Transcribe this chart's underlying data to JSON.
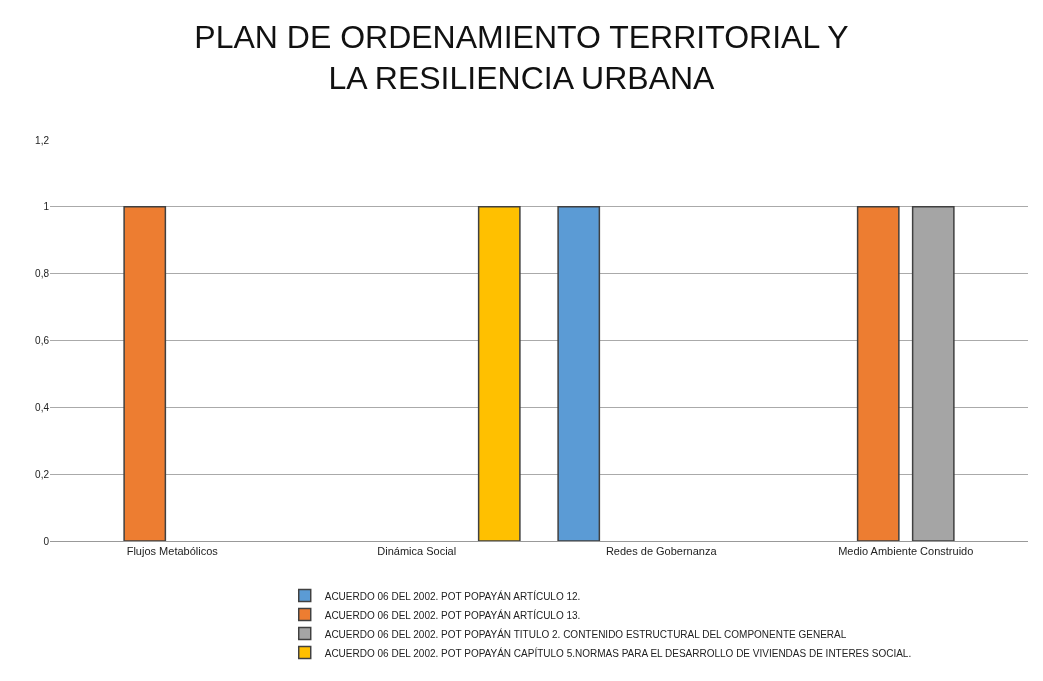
{
  "chart_data": {
    "type": "bar",
    "title": "PLAN DE ORDENAMIENTO TERRITORIAL Y\nLA RESILIENCIA URBANA",
    "categories": [
      "Flujos Metabólicos",
      "Dinámica Social",
      "Redes de Gobernanza",
      "Medio Ambiente Construido"
    ],
    "series": [
      {
        "name": "ACUERDO 06 DEL 2002. POT POPAYÁN ARTÍCULO 12.",
        "color": "#5b9bd5",
        "values": [
          null,
          null,
          1,
          null
        ]
      },
      {
        "name": "ACUERDO 06 DEL 2002. POT POPAYÁN ARTÍCULO 13.",
        "color": "#ed7d31",
        "values": [
          1,
          null,
          null,
          1
        ]
      },
      {
        "name": "ACUERDO 06 DEL 2002. POT POPAYÁN TITULO 2. CONTENIDO ESTRUCTURAL DEL COMPONENTE GENERAL",
        "color": "#a5a5a5",
        "values": [
          null,
          null,
          null,
          1
        ]
      },
      {
        "name": "ACUERDO 06 DEL 2002. POT POPAYÁN CAPÍTULO 5.NORMAS PARA EL DESARROLLO DE VIVIENDAS DE INTERES SOCIAL.",
        "color": "#ffc000",
        "values": [
          null,
          1,
          null,
          null
        ]
      }
    ],
    "ylim": [
      0,
      1.2
    ],
    "yticks": [
      0,
      {
        "value": 0.2,
        "label": "0,2"
      },
      {
        "value": 0.4,
        "label": "0,4"
      },
      {
        "value": 0.6,
        "label": "0,6"
      },
      {
        "value": 0.8,
        "label": "0,8"
      },
      1,
      {
        "value": 1.2,
        "label": "1,2"
      }
    ],
    "grid": "y",
    "legend": "bottom"
  }
}
